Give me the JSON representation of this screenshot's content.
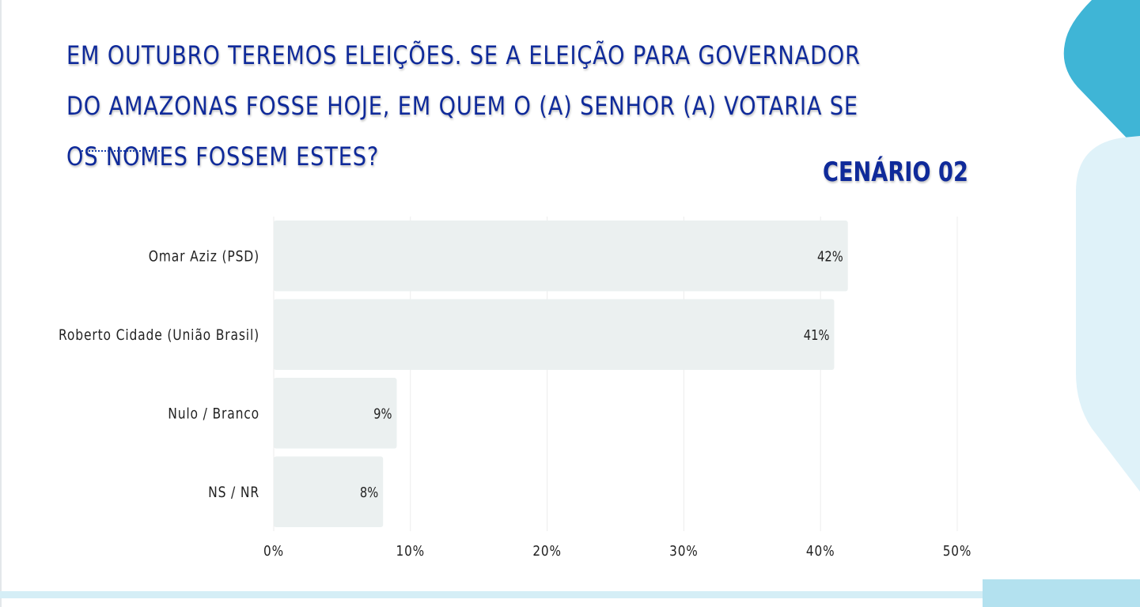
{
  "page": {
    "title": "EM OUTUBRO TEREMOS ELEIÇÕES. SE A ELEIÇÃO PARA GOVERNADOR DO AMAZONAS FOSSE HOJE, EM QUEM O (A) SENHOR (A) VOTARIA SE OS NOMES FOSSEM ESTES?",
    "scenario_label": "CENÁRIO 02"
  },
  "colors": {
    "title": "#0f2a9a",
    "bar": "#ebf0f0",
    "grid": "#ececec",
    "text": "#222222",
    "accent_dark": "#3fb5d6",
    "accent_light": "#dff2f9"
  },
  "chart_data": {
    "type": "bar",
    "orientation": "horizontal",
    "categories": [
      "Omar Aziz (PSD)",
      "Roberto Cidade (União Brasil)",
      "Nulo / Branco",
      "NS / NR"
    ],
    "values": [
      42,
      41,
      9,
      8
    ],
    "value_labels": [
      "42%",
      "41%",
      "9%",
      "8%"
    ],
    "xlim": [
      0,
      50
    ],
    "xticks": [
      0,
      10,
      20,
      30,
      40,
      50
    ],
    "xtick_labels": [
      "0%",
      "10%",
      "20%",
      "30%",
      "40%",
      "50%"
    ],
    "grid": true,
    "legend": "none"
  }
}
